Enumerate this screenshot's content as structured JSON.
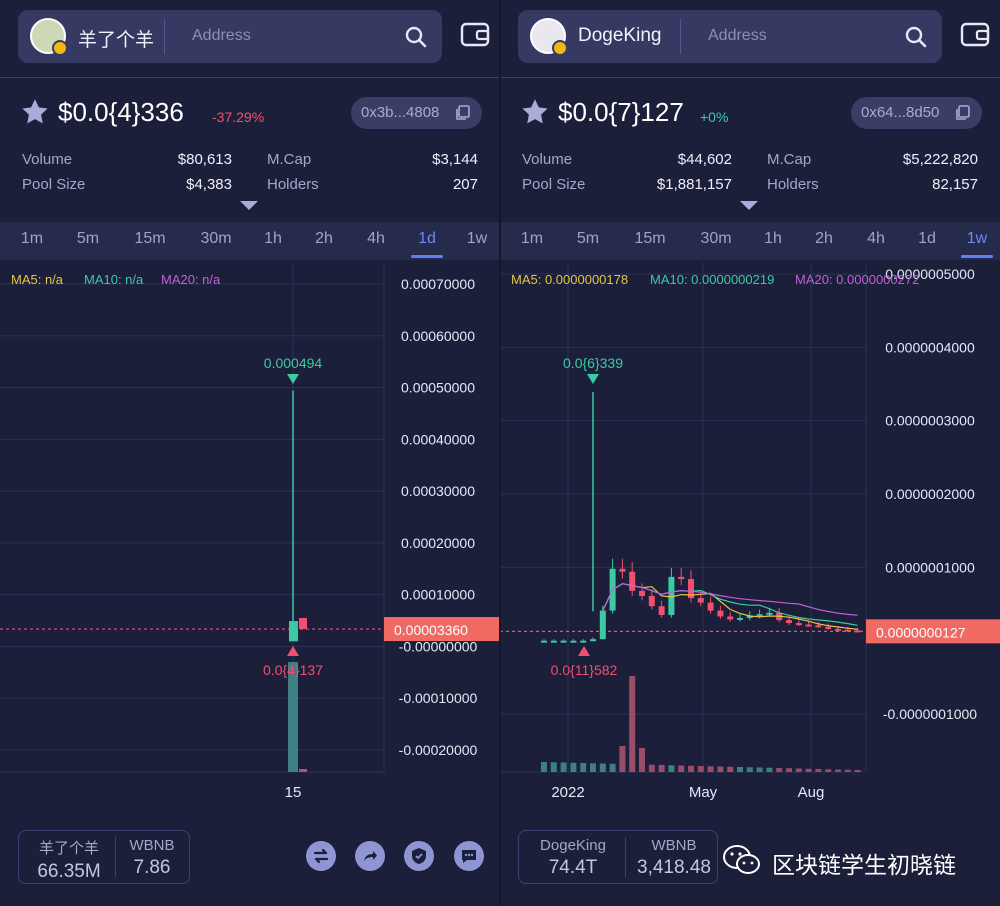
{
  "left": {
    "token_name": "羊了个羊",
    "address_placeholder": "Address",
    "price": "$0.0{4}336",
    "change": "-37.29%",
    "change_color": "#f0506e",
    "contract": "0x3b...4808",
    "stats": {
      "volume_label": "Volume",
      "volume": "$80,613",
      "pool_label": "Pool Size",
      "pool": "$4,383",
      "mcap_label": "M.Cap",
      "mcap": "$3,144",
      "holders_label": "Holders",
      "holders": "207"
    },
    "timeframes": [
      "1m",
      "5m",
      "15m",
      "30m",
      "1h",
      "2h",
      "4h",
      "1d",
      "1w"
    ],
    "active_timeframe": "1d",
    "ma": {
      "ma5": "MA5: n/a",
      "ma10": "MA10: n/a",
      "ma20": "MA20: n/a"
    },
    "footer": {
      "token_label": "羊了个羊",
      "token_amount": "66.35M",
      "quote_label": "WBNB",
      "quote_amount": "7.86"
    }
  },
  "right": {
    "token_name": "DogeKing",
    "address_placeholder": "Address",
    "price": "$0.0{7}127",
    "change": "+0%",
    "change_color": "#3ccaa3",
    "contract": "0x64...8d50",
    "stats": {
      "volume_label": "Volume",
      "volume": "$44,602",
      "pool_label": "Pool Size",
      "pool": "$1,881,157",
      "mcap_label": "M.Cap",
      "mcap": "$5,222,820",
      "holders_label": "Holders",
      "holders": "82,157"
    },
    "timeframes": [
      "1m",
      "5m",
      "15m",
      "30m",
      "1h",
      "2h",
      "4h",
      "1d",
      "1w"
    ],
    "active_timeframe": "1w",
    "ma": {
      "ma5": "MA5: 0.0000000178",
      "ma10": "MA10: 0.0000000219",
      "ma20": "MA20: 0.0000000272"
    },
    "footer": {
      "token_label": "DogeKing",
      "token_amount": "74.4T",
      "quote_label": "WBNB",
      "quote_amount": "3,418.48"
    }
  },
  "watermark": "区块链学生初晓链",
  "icons": [
    "search-icon",
    "wallet-icon",
    "star-icon",
    "copy-icon",
    "chevron-down-icon",
    "swap-icon",
    "share-icon",
    "shield-icon",
    "chat-icon",
    "wechat-icon"
  ],
  "colors": {
    "up": "#3ccaa3",
    "down": "#f0506e",
    "ma5": "#e8c33f",
    "ma10": "#3ccaa3",
    "ma20": "#c25fd8",
    "accent": "#5f7ff5"
  },
  "chart_data": [
    {
      "type": "candlestick",
      "yticks": [
        "0.00070000",
        "0.00060000",
        "0.00050000",
        "0.00040000",
        "0.00030000",
        "0.00020000",
        "0.00010000",
        "-0.00000000",
        "-0.00010000",
        "-0.00020000"
      ],
      "ytick_values": [
        0.0007,
        0.0006,
        0.0005,
        0.0004,
        0.0003,
        0.0002,
        0.0001,
        0,
        -0.0001,
        -0.0002
      ],
      "xlabels": [
        "15"
      ],
      "current_price_label": "0.00003360",
      "current_price": 3.36e-05,
      "high_label": "0.000494",
      "low_label": "0.0{4}137",
      "candles": [
        {
          "open": 1.37e-05,
          "close": 4.9e-05,
          "high": 0.000494,
          "low": 1.37e-05
        },
        {
          "open": 5.5e-05,
          "close": 3.36e-05,
          "high": 5.5e-05,
          "low": 3.36e-05
        }
      ]
    },
    {
      "type": "candlestick",
      "yticks": [
        "0.0000005000",
        "0.0000004000",
        "0.0000003000",
        "0.0000002000",
        "0.0000001000",
        "-0.0000001000"
      ],
      "ytick_values": [
        5e-07,
        4e-07,
        3e-07,
        2e-07,
        1e-07,
        -1e-07
      ],
      "xlabels": [
        "2022",
        "May",
        "Aug"
      ],
      "current_price_label": "0.0000000127",
      "current_price": 1.27e-08,
      "high_label": "0.0{6}339",
      "low_label": "0.0{11}582",
      "candles_close": [
        0,
        0,
        0,
        0,
        0,
        2e-09,
        4.1e-08,
        9.8e-08,
        9.4e-08,
        6.8e-08,
        6.1e-08,
        4.7e-08,
        3.5e-08,
        8.7e-08,
        8.4e-08,
        5.8e-08,
        5.2e-08,
        4.1e-08,
        3.3e-08,
        2.9e-08,
        3.1e-08,
        3.4e-08,
        3.6e-08,
        3.8e-08,
        2.8e-08,
        2.4e-08,
        2.2e-08,
        2.1e-08,
        1.9e-08,
        1.6e-08,
        1.5e-08,
        1.4e-08,
        1.27e-08
      ]
    }
  ]
}
